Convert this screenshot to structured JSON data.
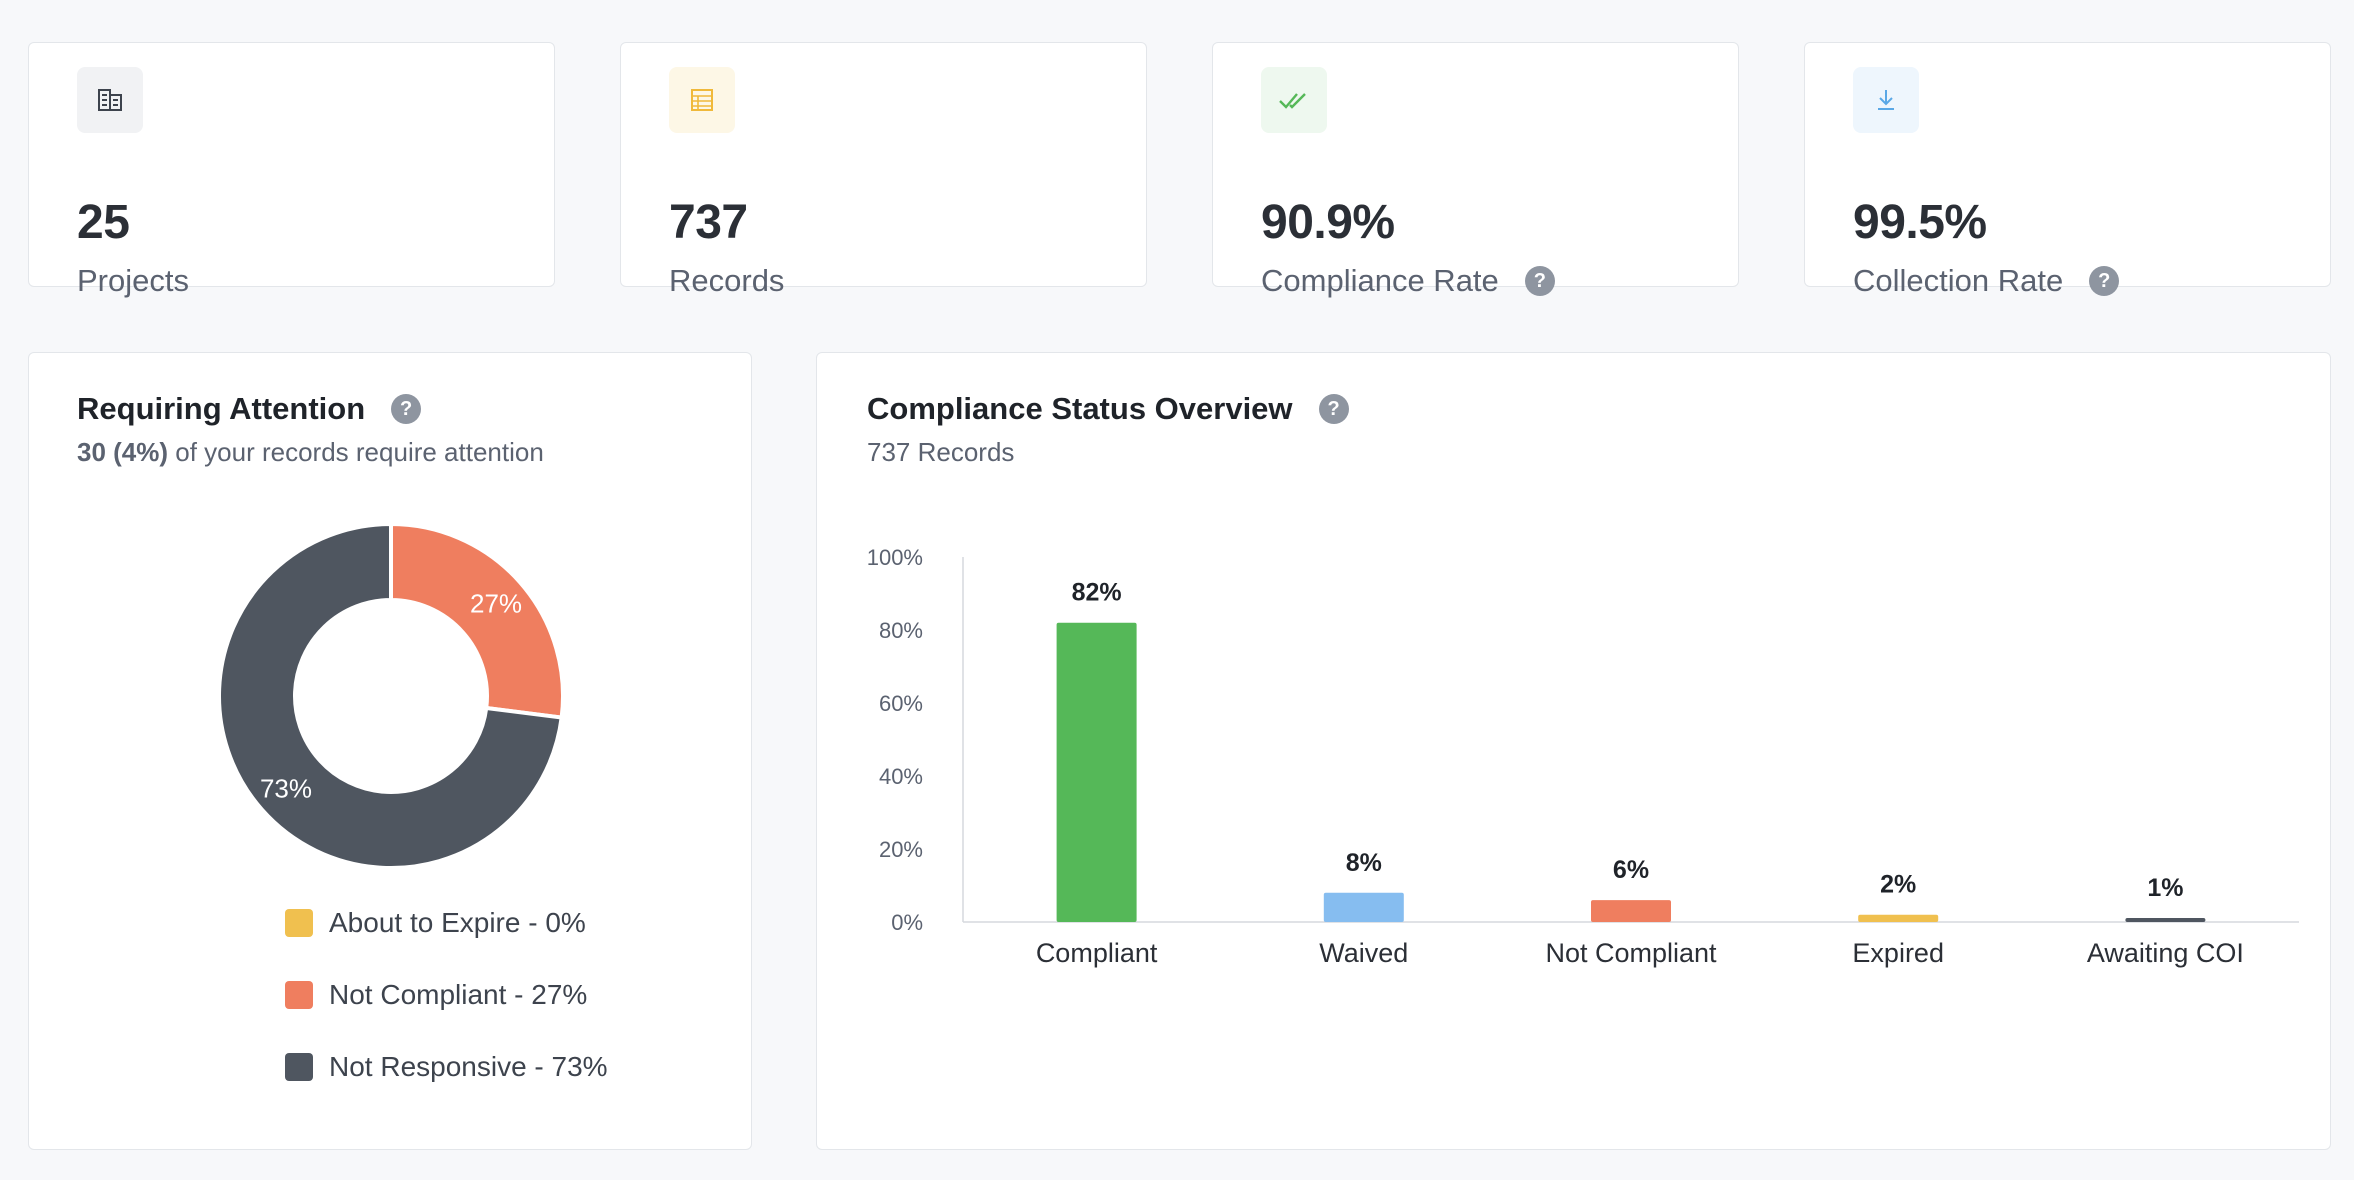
{
  "stats": [
    {
      "value": "25",
      "label": "Projects",
      "icon": "building-icon"
    },
    {
      "value": "737",
      "label": "Records",
      "icon": "table-icon"
    },
    {
      "value": "90.9%",
      "label": "Compliance Rate",
      "icon": "double-check-icon"
    },
    {
      "value": "99.5%",
      "label": "Collection Rate",
      "icon": "download-icon"
    }
  ],
  "help_glyph": "?",
  "attention": {
    "title": "Requiring Attention",
    "count": "30 (4%)",
    "subtitle_rest": " of your records require attention",
    "legend": [
      {
        "label": "About to Expire - 0%",
        "color": "#f0c04f"
      },
      {
        "label": "Not Compliant - 27%",
        "color": "#ef7e5f"
      },
      {
        "label": "Not Responsive - 73%",
        "color": "#4f5660"
      }
    ]
  },
  "overview": {
    "title": "Compliance Status Overview",
    "subtitle": "737 Records"
  },
  "chart_data": [
    {
      "type": "pie",
      "categories": [
        "About to Expire",
        "Not Compliant",
        "Not Responsive"
      ],
      "values": [
        0,
        27,
        73
      ],
      "value_labels": [
        "",
        "27%",
        "73%"
      ],
      "colors": [
        "#f0c04f",
        "#ef7e5f",
        "#4f5660"
      ],
      "donut": true
    },
    {
      "type": "bar",
      "categories": [
        "Compliant",
        "Waived",
        "Not Compliant",
        "Expired",
        "Awaiting COI"
      ],
      "values": [
        82,
        8,
        6,
        2,
        1
      ],
      "value_labels": [
        "82%",
        "8%",
        "6%",
        "2%",
        "1%"
      ],
      "colors": [
        "#55b858",
        "#86bdf0",
        "#ef7e5f",
        "#f0c04f",
        "#4f5660"
      ],
      "ylim": [
        0,
        100
      ],
      "yticks": [
        "0%",
        "20%",
        "40%",
        "60%",
        "80%",
        "100%"
      ],
      "grid": false
    }
  ],
  "colors": {
    "background": "#f7f8fa",
    "card": "#ffffff",
    "help": "#8e95a0"
  }
}
